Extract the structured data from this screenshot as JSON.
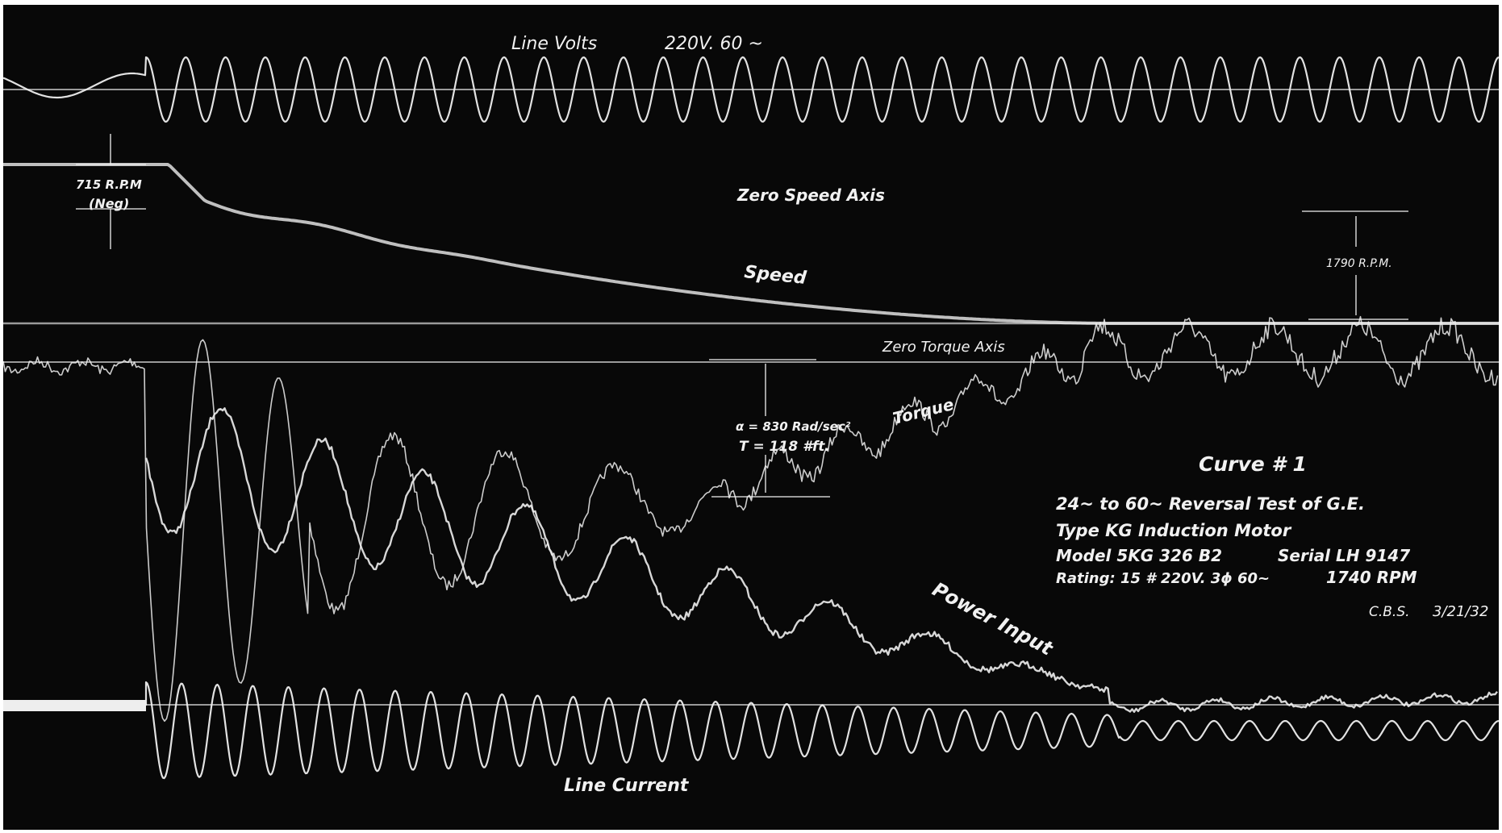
{
  "colors": {
    "background": "#080808",
    "trace": "#eeeeee",
    "axis": "#9a9a9a",
    "annotation": "#f1f1f1",
    "border": "#ffffff"
  },
  "chart_data": {
    "type": "line",
    "title": "Curve # 1",
    "subtitle_lines": [
      "24~ to 60~ Reversal Test of G.E.",
      "Type KG Induction Motor",
      "Model 5KG 326 B2",
      "Serial LH 9147",
      "Rating: 15 # 220V. 3ϕ 60~",
      "1740 RPM",
      "C.B.S.",
      "3/21/32"
    ],
    "grid": false,
    "axes_printed": false,
    "axis_labels": {
      "zero_speed": "Zero Speed Axis",
      "zero_torque": "Zero Torque Axis"
    },
    "series": [
      {
        "name": "Line Volts",
        "label": "Line Volts",
        "label_extra": "220V. 60 ~",
        "kind": "sinusoid",
        "cycles_after_switch": 34,
        "amplitude_relative": 1.0
      },
      {
        "name": "Speed",
        "label": "Speed",
        "start_value_rpm": -715,
        "final_value_rpm": 1790,
        "start_label": "715 R.P.M",
        "start_label_sub": "(Neg)",
        "end_label": "1790 R.P.M."
      },
      {
        "name": "Torque",
        "label": "Torque",
        "accel_label": "α = 830 Rad/sec²",
        "torque_label": "T = 118 #ft."
      },
      {
        "name": "Power Input",
        "label": "Power Input"
      },
      {
        "name": "Line Current",
        "label": "Line Current",
        "kind": "decaying-sinusoid",
        "cycles_after_switch": 38
      }
    ],
    "annotations": [
      "715 R.P.M",
      "(Neg)",
      "1790 R.P.M.",
      "α = 830 Rad/sec²",
      "T = 118 #ft."
    ]
  }
}
